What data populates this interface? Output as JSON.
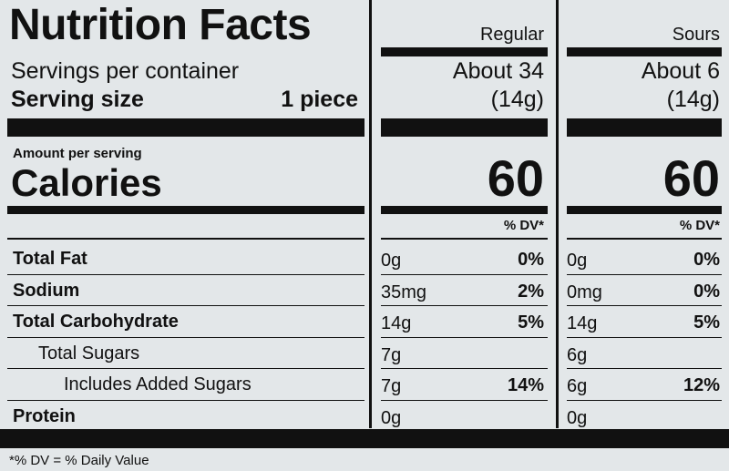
{
  "header": {
    "title": "Nutrition Facts"
  },
  "columns": [
    "Regular",
    "Sours"
  ],
  "servings": {
    "label": "Servings per container",
    "values": [
      "About 34",
      "About 6"
    ]
  },
  "serving_size": {
    "label": "Serving size",
    "amount": "1 piece",
    "values": [
      "(14g)",
      "(14g)"
    ]
  },
  "calories": {
    "caption": "Amount per serving",
    "label": "Calories",
    "values": [
      "60",
      "60"
    ]
  },
  "dv_header": [
    "% DV*",
    "% DV*"
  ],
  "rows": [
    {
      "label": "Total Fat",
      "bold": true,
      "indent": 0,
      "values": [
        [
          "0g",
          "0%"
        ],
        [
          "0g",
          "0%"
        ]
      ]
    },
    {
      "label": "Sodium",
      "bold": true,
      "indent": 0,
      "values": [
        [
          "35mg",
          "2%"
        ],
        [
          "0mg",
          "0%"
        ]
      ]
    },
    {
      "label": "Total Carbohydrate",
      "bold": true,
      "indent": 0,
      "values": [
        [
          "14g",
          "5%"
        ],
        [
          "14g",
          "5%"
        ]
      ]
    },
    {
      "label": "Total Sugars",
      "bold": false,
      "indent": 1,
      "values": [
        [
          "7g"
        ],
        [
          "6g"
        ]
      ]
    },
    {
      "label": "Includes Added Sugars",
      "bold": false,
      "indent": 2,
      "values": [
        [
          "7g",
          "14%"
        ],
        [
          "6g",
          "12%"
        ]
      ]
    },
    {
      "label": "Protein",
      "bold": true,
      "indent": 0,
      "values": [
        [
          "0g"
        ],
        [
          "0g"
        ]
      ]
    }
  ],
  "footnote": "*% DV = % Daily Value"
}
